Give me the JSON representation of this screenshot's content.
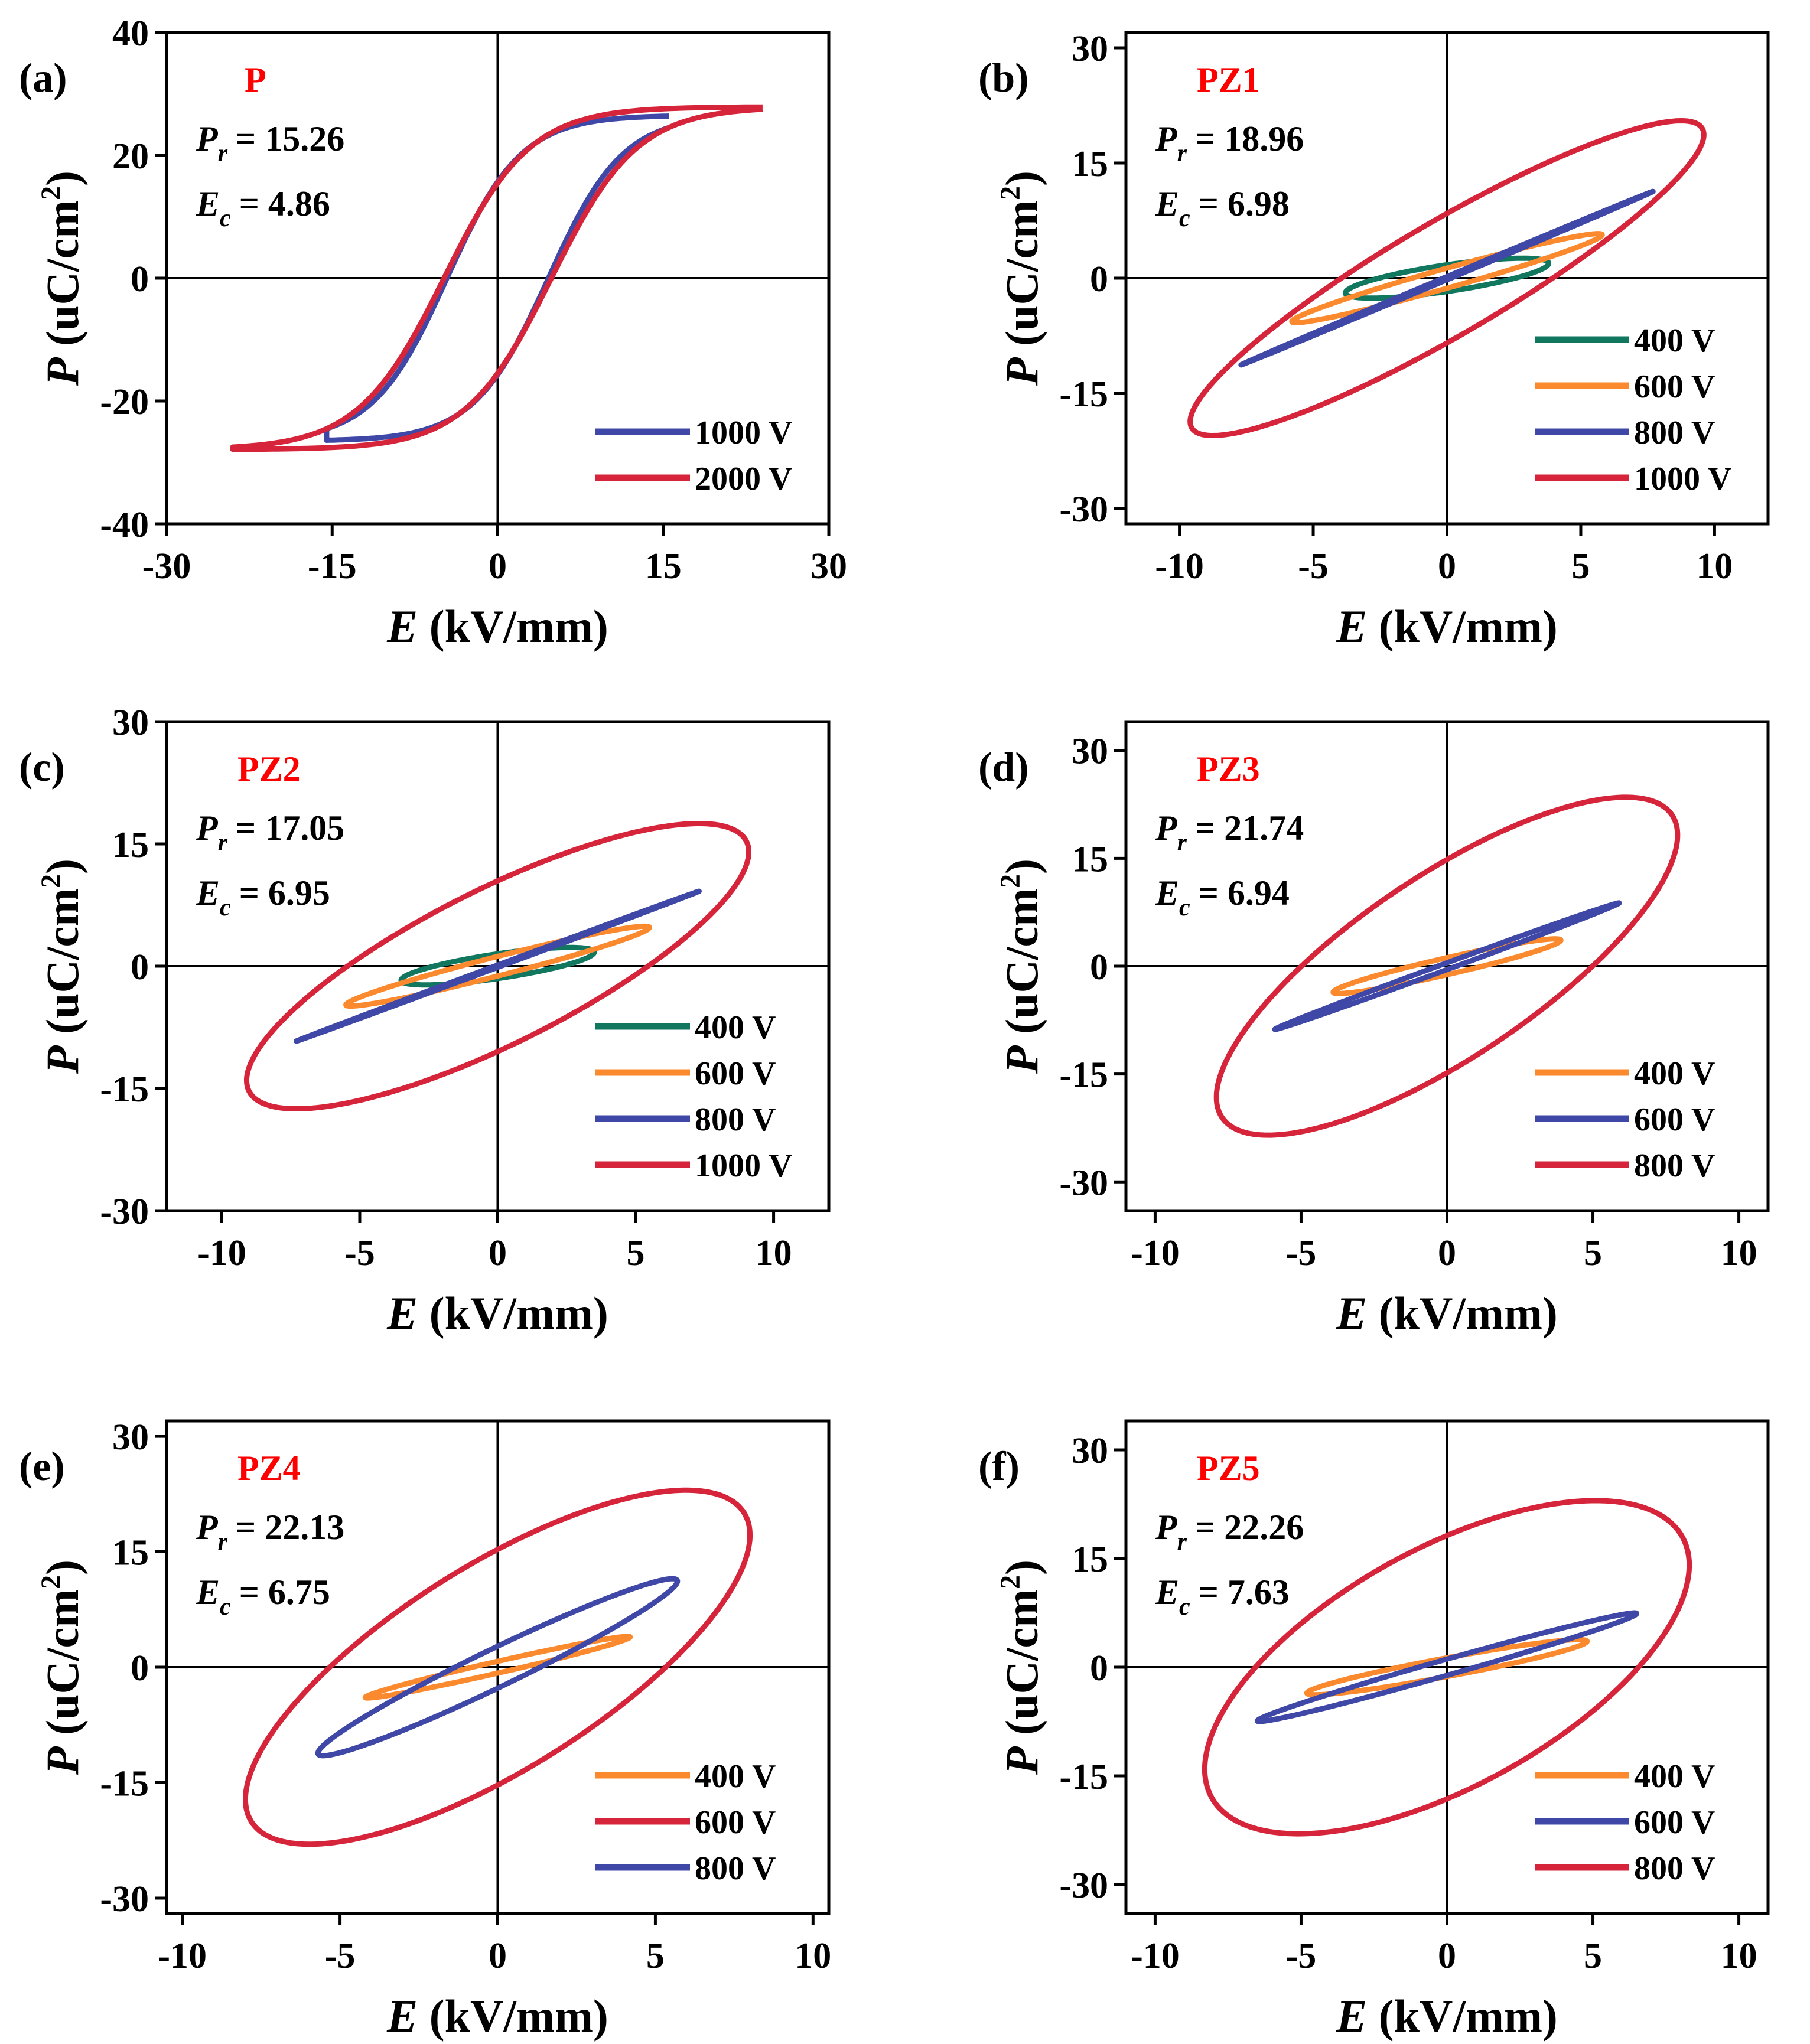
{
  "figure_title": "P-E hysteresis loops",
  "colors": {
    "red": "#d6253a",
    "blue": "#3f48a6",
    "orange": "#fb8a2e",
    "green": "#11775f",
    "label_red": "#ff0000",
    "axis": "#000000"
  },
  "chart_data": [
    {
      "type": "line",
      "panel_label": "(a)",
      "sample": "P",
      "pr_symbol": "P",
      "pr_sub": "r",
      "pr_value": "= 15.26",
      "ec_symbol": "E",
      "ec_sub": "c",
      "ec_value": "= 4.86",
      "xlabel_var": "E",
      "xlabel_unit": " (kV/mm)",
      "ylabel_var": "P",
      "ylabel_unit": " (uC/cm",
      "ylabel_sup": "2",
      "ylabel_end": ")",
      "xlim": [
        -30,
        30
      ],
      "ylim": [
        -40,
        40
      ],
      "xticks": [
        -30,
        -15,
        0,
        15,
        30
      ],
      "yticks": [
        -40,
        -20,
        0,
        20,
        40
      ],
      "series": [
        {
          "name": "1000 V",
          "color": "blue",
          "type": "sshape",
          "emax": 15.5,
          "pmax": 24.5,
          "ec": 4.6,
          "pr": 14.5,
          "k": 0.42
        },
        {
          "name": "2000 V",
          "color": "red",
          "type": "sshape",
          "emax": 24,
          "pmax": 27.5,
          "ec": 4.86,
          "pr": 15.26,
          "k": 0.4
        }
      ]
    },
    {
      "type": "line",
      "panel_label": "(b)",
      "sample": "PZ1",
      "pr_symbol": "P",
      "pr_sub": "r",
      "pr_value": "= 18.96",
      "ec_symbol": "E",
      "ec_sub": "c",
      "ec_value": "= 6.98",
      "xlabel_var": "E",
      "xlabel_unit": " (kV/mm)",
      "ylabel_var": "P",
      "ylabel_unit": " (uC/cm",
      "ylabel_sup": "2",
      "ylabel_end": ")",
      "xlim": [
        -12,
        12
      ],
      "ylim": [
        -32,
        32
      ],
      "xticks": [
        -10,
        -5,
        0,
        5,
        10
      ],
      "yticks": [
        -30,
        -15,
        0,
        15,
        30
      ],
      "series": [
        {
          "name": "400 V",
          "color": "green",
          "type": "ellipse",
          "emax": 3.8,
          "pmax": 2.6,
          "pr": 0.8,
          "ec": 1.9
        },
        {
          "name": "600 V",
          "color": "orange",
          "type": "ellipse",
          "emax": 5.8,
          "pmax": 5.8,
          "pr": 3.3,
          "ec": 3.9
        },
        {
          "name": "800 V",
          "color": "blue",
          "type": "ellipse",
          "emax": 7.7,
          "pmax": 11.3,
          "pr": 8.2,
          "ec": 5.4
        },
        {
          "name": "1000 V",
          "color": "red",
          "type": "ellipse",
          "emax": 9.6,
          "pmax": 20.5,
          "pr": 18.96,
          "ec": 6.98
        }
      ]
    },
    {
      "type": "line",
      "panel_label": "(c)",
      "sample": "PZ2",
      "pr_symbol": "P",
      "pr_sub": "r",
      "pr_value": "= 17.05",
      "ec_symbol": "E",
      "ec_sub": "c",
      "ec_value": "= 6.95",
      "xlabel_var": "E",
      "xlabel_unit": " (kV/mm)",
      "ylabel_var": "P",
      "ylabel_unit": " (uC/cm",
      "ylabel_sup": "2",
      "ylabel_end": ")",
      "xlim": [
        -12,
        12
      ],
      "ylim": [
        -30,
        30
      ],
      "xticks": [
        -10,
        -5,
        0,
        5,
        10
      ],
      "yticks": [
        -30,
        -15,
        0,
        15,
        30
      ],
      "series": [
        {
          "name": "400 V",
          "color": "green",
          "type": "ellipse",
          "emax": 3.5,
          "pmax": 2.3,
          "pr": 0.7,
          "ec": 1.8
        },
        {
          "name": "600 V",
          "color": "orange",
          "type": "ellipse",
          "emax": 5.5,
          "pmax": 4.9,
          "pr": 2.8,
          "ec": 3.6
        },
        {
          "name": "800 V",
          "color": "blue",
          "type": "ellipse",
          "emax": 7.3,
          "pmax": 9.2,
          "pr": 6.8,
          "ec": 5.0
        },
        {
          "name": "1000 V",
          "color": "red",
          "type": "ellipse",
          "emax": 9.1,
          "pmax": 17.5,
          "pr": 17.05,
          "ec": 6.95
        }
      ]
    },
    {
      "type": "line",
      "panel_label": "(d)",
      "sample": "PZ3",
      "pr_symbol": "P",
      "pr_sub": "r",
      "pr_value": "= 21.74",
      "ec_symbol": "E",
      "ec_sub": "c",
      "ec_value": "= 6.94",
      "xlabel_var": "E",
      "xlabel_unit": " (kV/mm)",
      "ylabel_var": "P",
      "ylabel_unit": " (uC/cm",
      "ylabel_sup": "2",
      "ylabel_end": ")",
      "xlim": [
        -11,
        11
      ],
      "ylim": [
        -34,
        34
      ],
      "xticks": [
        -10,
        -5,
        0,
        5,
        10
      ],
      "yticks": [
        -30,
        -15,
        0,
        15,
        30
      ],
      "series": [
        {
          "name": "400 V",
          "color": "orange",
          "type": "ellipse",
          "emax": 3.9,
          "pmax": 3.8,
          "pr": 1.9,
          "ec": 2.6
        },
        {
          "name": "600 V",
          "color": "blue",
          "type": "ellipse",
          "emax": 5.9,
          "pmax": 8.8,
          "pr": 5.5,
          "ec": 4.4
        },
        {
          "name": "800 V",
          "color": "red",
          "type": "ellipse",
          "emax": 7.9,
          "pmax": 23.5,
          "pr": 21.74,
          "ec": 6.94
        }
      ]
    },
    {
      "type": "line",
      "panel_label": "(e)",
      "sample": "PZ4",
      "pr_symbol": "P",
      "pr_sub": "r",
      "pr_value": "= 22.13",
      "ec_symbol": "E",
      "ec_sub": "c",
      "ec_value": "= 6.75",
      "xlabel_var": "E",
      "xlabel_unit": " (kV/mm)",
      "ylabel_var": "P",
      "ylabel_unit": " (uC/cm",
      "ylabel_sup": "2",
      "ylabel_end": ")",
      "xlim": [
        -10.5,
        10.5
      ],
      "ylim": [
        -32,
        32
      ],
      "xticks": [
        -10,
        -5,
        0,
        5,
        10
      ],
      "yticks": [
        -30,
        -15,
        0,
        15,
        30
      ],
      "series": [
        {
          "name": "400 V",
          "color": "orange",
          "type": "ellipse",
          "emax": 4.2,
          "pmax": 4.0,
          "pr": 2.2,
          "ec": 3.0
        },
        {
          "name": "600 V",
          "color": "red",
          "type": "ellipse",
          "emax": 8.0,
          "pmax": 23.0,
          "pr": 22.13,
          "ec": 6.75
        },
        {
          "name": "800 V",
          "color": "blue",
          "type": "ellipse",
          "emax": 5.7,
          "pmax": 11.5,
          "pr": 8.8,
          "ec": 4.6
        }
      ]
    },
    {
      "type": "line",
      "panel_label": "(f)",
      "sample": "PZ5",
      "pr_symbol": "P",
      "pr_sub": "r",
      "pr_value": "= 22.26",
      "ec_symbol": "E",
      "ec_sub": "c",
      "ec_value": "= 7.63",
      "xlabel_var": "E",
      "xlabel_unit": " (kV/mm)",
      "ylabel_var": "P",
      "ylabel_unit": " (uC/cm",
      "ylabel_sup": "2",
      "ylabel_end": ")",
      "xlim": [
        -11,
        11
      ],
      "ylim": [
        -34,
        34
      ],
      "xticks": [
        -10,
        -5,
        0,
        5,
        10
      ],
      "yticks": [
        -30,
        -15,
        0,
        15,
        30
      ],
      "series": [
        {
          "name": "400 V",
          "color": "orange",
          "type": "ellipse",
          "emax": 4.8,
          "pmax": 3.8,
          "pr": 1.8,
          "ec": 3.2
        },
        {
          "name": "600 V",
          "color": "blue",
          "type": "ellipse",
          "emax": 6.5,
          "pmax": 7.5,
          "pr": 5.6,
          "ec": 5.0
        },
        {
          "name": "800 V",
          "color": "red",
          "type": "ellipse",
          "emax": 8.3,
          "pmax": 23.0,
          "pr": 22.26,
          "ec": 7.63
        }
      ]
    }
  ]
}
